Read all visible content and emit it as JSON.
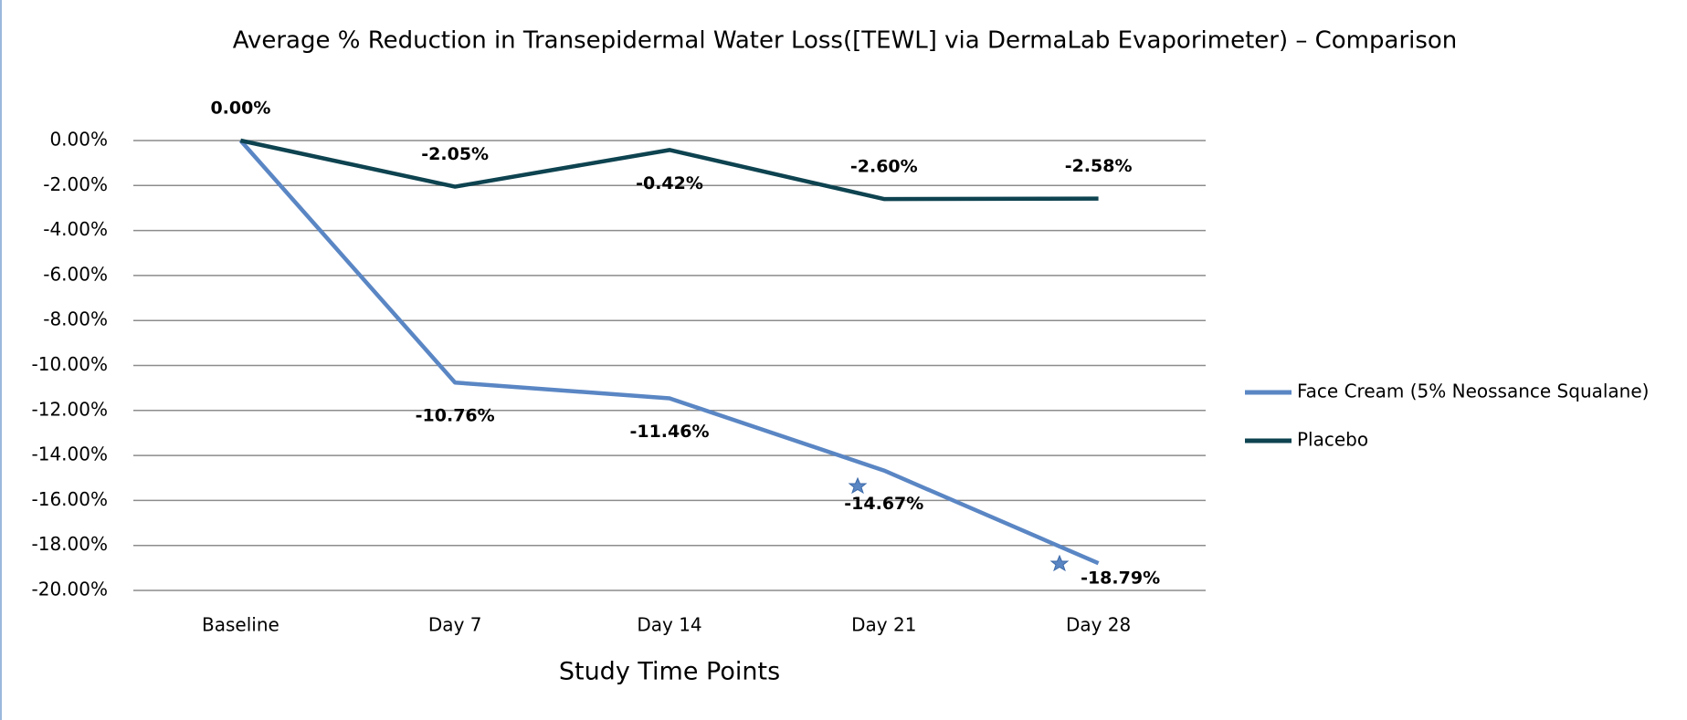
{
  "chart_data": {
    "type": "line",
    "title": "Average % Reduction in Transepidermal Water Loss([TEWL] via DermaLab Evaporimeter) – Comparison",
    "x_label": "Study Time Points",
    "categories": [
      "Baseline",
      "Day 7",
      "Day 14",
      "Day 21",
      "Day 28"
    ],
    "series": [
      {
        "name": "Face Cream (5% Neossance Squalane)",
        "color": "#5a86c4",
        "values": [
          0,
          -10.76,
          -11.46,
          -14.67,
          -18.79
        ],
        "value_labels": [
          null,
          "-10.76%",
          "-11.46%",
          "-14.67%",
          "-18.79%"
        ]
      },
      {
        "name": "Placebo",
        "color": "#0e4350",
        "values": [
          0,
          -2.05,
          -0.42,
          -2.6,
          -2.58
        ],
        "value_labels": [
          "0.00%",
          "-2.05%",
          "-0.42%",
          "-2.60%",
          "-2.58%"
        ]
      }
    ],
    "ylim": [
      -20,
      0
    ],
    "yticks": [
      {
        "value": 0,
        "label": "0.00%"
      },
      {
        "value": -2,
        "label": "-2.00%"
      },
      {
        "value": -4,
        "label": "-4.00%"
      },
      {
        "value": -6,
        "label": "-6.00%"
      },
      {
        "value": -8,
        "label": "-8.00%"
      },
      {
        "value": -10,
        "label": "-10.00%"
      },
      {
        "value": -12,
        "label": "-12.00%"
      },
      {
        "value": -14,
        "label": "-14.00%"
      },
      {
        "value": -16,
        "label": "-16.00%"
      },
      {
        "value": -18,
        "label": "-18.00%"
      },
      {
        "value": -20,
        "label": "-20.00%"
      }
    ],
    "grid": true,
    "legend": "right"
  }
}
